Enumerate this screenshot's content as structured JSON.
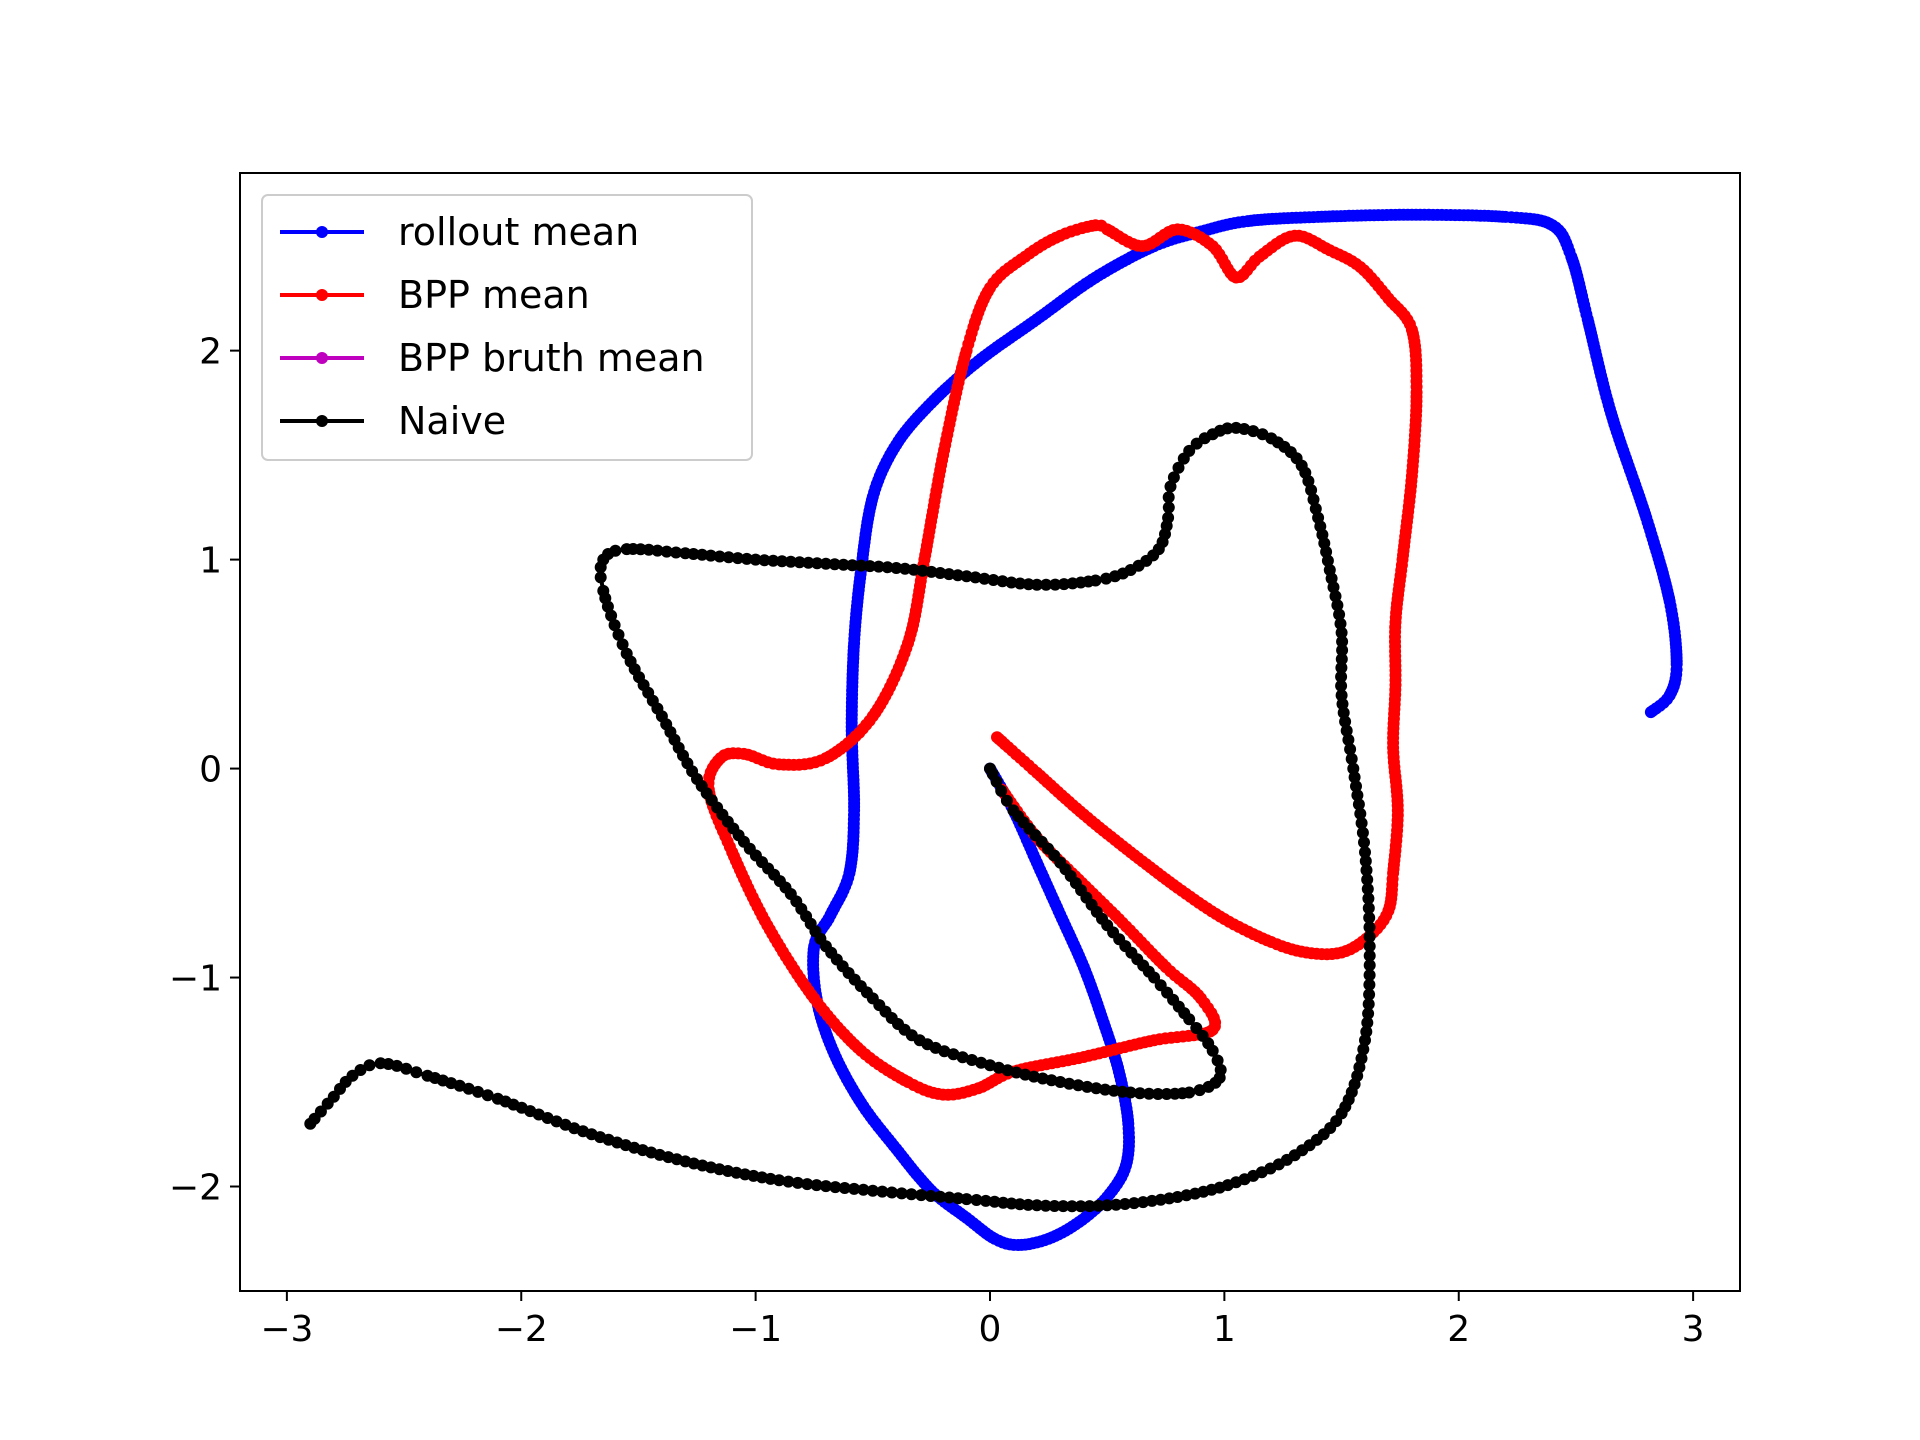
{
  "chart_data": {
    "type": "line",
    "title": "",
    "xlabel": "",
    "ylabel": "",
    "xlim": [
      -3.2,
      3.2
    ],
    "ylim": [
      -2.5,
      2.85
    ],
    "xticks": [
      -3,
      -2,
      -1,
      0,
      1,
      2,
      3
    ],
    "yticks": [
      -2,
      -1,
      0,
      1,
      2
    ],
    "xtick_labels": [
      "−3",
      "−2",
      "−1",
      "0",
      "1",
      "2",
      "3"
    ],
    "ytick_labels": [
      "−2",
      "−1",
      "0",
      "1",
      "2"
    ],
    "grid": false,
    "legend_position": "upper-left",
    "series": [
      {
        "name": "rollout mean",
        "color": "#0000ff",
        "points": [
          [
            0.0,
            0.0
          ],
          [
            0.1,
            -0.2
          ],
          [
            0.2,
            -0.45
          ],
          [
            0.3,
            -0.7
          ],
          [
            0.4,
            -0.95
          ],
          [
            0.48,
            -1.2
          ],
          [
            0.55,
            -1.45
          ],
          [
            0.59,
            -1.7
          ],
          [
            0.58,
            -1.9
          ],
          [
            0.5,
            -2.05
          ],
          [
            0.38,
            -2.17
          ],
          [
            0.25,
            -2.25
          ],
          [
            0.12,
            -2.28
          ],
          [
            0.02,
            -2.25
          ],
          [
            -0.1,
            -2.15
          ],
          [
            -0.25,
            -2.02
          ],
          [
            -0.4,
            -1.82
          ],
          [
            -0.55,
            -1.6
          ],
          [
            -0.67,
            -1.35
          ],
          [
            -0.74,
            -1.1
          ],
          [
            -0.75,
            -0.85
          ],
          [
            -0.68,
            -0.7
          ],
          [
            -0.6,
            -0.5
          ],
          [
            -0.58,
            -0.2
          ],
          [
            -0.59,
            0.2
          ],
          [
            -0.58,
            0.6
          ],
          [
            -0.55,
            0.95
          ],
          [
            -0.5,
            1.3
          ],
          [
            -0.4,
            1.55
          ],
          [
            -0.25,
            1.75
          ],
          [
            -0.05,
            1.95
          ],
          [
            0.2,
            2.15
          ],
          [
            0.45,
            2.35
          ],
          [
            0.7,
            2.5
          ],
          [
            0.9,
            2.57
          ],
          [
            1.1,
            2.62
          ],
          [
            1.4,
            2.64
          ],
          [
            1.8,
            2.65
          ],
          [
            2.2,
            2.64
          ],
          [
            2.4,
            2.6
          ],
          [
            2.48,
            2.45
          ],
          [
            2.55,
            2.15
          ],
          [
            2.65,
            1.7
          ],
          [
            2.8,
            1.2
          ],
          [
            2.9,
            0.8
          ],
          [
            2.93,
            0.5
          ],
          [
            2.9,
            0.35
          ],
          [
            2.82,
            0.27
          ]
        ]
      },
      {
        "name": "BPP mean",
        "color": "#ff0000",
        "points": [
          [
            0.03,
            0.15
          ],
          [
            0.2,
            -0.02
          ],
          [
            0.4,
            -0.22
          ],
          [
            0.6,
            -0.4
          ],
          [
            0.8,
            -0.57
          ],
          [
            1.0,
            -0.72
          ],
          [
            1.2,
            -0.83
          ],
          [
            1.35,
            -0.88
          ],
          [
            1.5,
            -0.88
          ],
          [
            1.62,
            -0.8
          ],
          [
            1.7,
            -0.68
          ],
          [
            1.72,
            -0.5
          ],
          [
            1.74,
            -0.2
          ],
          [
            1.72,
            0.1
          ],
          [
            1.73,
            0.4
          ],
          [
            1.73,
            0.7
          ],
          [
            1.76,
            1.0
          ],
          [
            1.8,
            1.4
          ],
          [
            1.82,
            1.8
          ],
          [
            1.8,
            2.1
          ],
          [
            1.7,
            2.25
          ],
          [
            1.58,
            2.4
          ],
          [
            1.45,
            2.48
          ],
          [
            1.3,
            2.55
          ],
          [
            1.15,
            2.45
          ],
          [
            1.05,
            2.35
          ],
          [
            0.95,
            2.5
          ],
          [
            0.8,
            2.58
          ],
          [
            0.65,
            2.5
          ],
          [
            0.5,
            2.58
          ],
          [
            0.45,
            2.6
          ],
          [
            0.3,
            2.55
          ],
          [
            0.15,
            2.45
          ],
          [
            0.0,
            2.3
          ],
          [
            -0.1,
            2.0
          ],
          [
            -0.2,
            1.5
          ],
          [
            -0.28,
            1.0
          ],
          [
            -0.35,
            0.6
          ],
          [
            -0.5,
            0.25
          ],
          [
            -0.7,
            0.05
          ],
          [
            -0.9,
            0.02
          ],
          [
            -1.05,
            0.07
          ],
          [
            -1.15,
            0.05
          ],
          [
            -1.2,
            -0.1
          ],
          [
            -1.1,
            -0.4
          ],
          [
            -0.95,
            -0.75
          ],
          [
            -0.75,
            -1.1
          ],
          [
            -0.55,
            -1.35
          ],
          [
            -0.35,
            -1.5
          ],
          [
            -0.2,
            -1.56
          ],
          [
            -0.05,
            -1.53
          ],
          [
            0.1,
            -1.45
          ],
          [
            0.4,
            -1.38
          ],
          [
            0.7,
            -1.3
          ],
          [
            0.95,
            -1.25
          ],
          [
            0.9,
            -1.1
          ],
          [
            0.75,
            -0.95
          ],
          [
            0.55,
            -0.72
          ],
          [
            0.35,
            -0.5
          ],
          [
            0.2,
            -0.33
          ],
          [
            0.05,
            -0.1
          ]
        ]
      },
      {
        "name": "BPP bruth mean",
        "color": "#bf00bf",
        "points": []
      },
      {
        "name": "Naive",
        "color": "#000000",
        "points": [
          [
            0.0,
            0.0
          ],
          [
            0.1,
            -0.2
          ],
          [
            0.3,
            -0.45
          ],
          [
            0.5,
            -0.75
          ],
          [
            0.7,
            -1.0
          ],
          [
            0.85,
            -1.2
          ],
          [
            0.95,
            -1.35
          ],
          [
            0.98,
            -1.48
          ],
          [
            0.85,
            -1.55
          ],
          [
            0.6,
            -1.55
          ],
          [
            0.3,
            -1.5
          ],
          [
            0.0,
            -1.42
          ],
          [
            -0.3,
            -1.3
          ],
          [
            -0.5,
            -1.1
          ],
          [
            -0.7,
            -0.85
          ],
          [
            -0.85,
            -0.6
          ],
          [
            -1.05,
            -0.35
          ],
          [
            -1.25,
            -0.05
          ],
          [
            -1.4,
            0.25
          ],
          [
            -1.55,
            0.55
          ],
          [
            -1.65,
            0.85
          ],
          [
            -1.65,
            1.0
          ],
          [
            -1.55,
            1.05
          ],
          [
            -1.3,
            1.03
          ],
          [
            -1.0,
            1.0
          ],
          [
            -0.7,
            0.98
          ],
          [
            -0.4,
            0.96
          ],
          [
            -0.1,
            0.92
          ],
          [
            0.2,
            0.88
          ],
          [
            0.45,
            0.9
          ],
          [
            0.6,
            0.95
          ],
          [
            0.72,
            1.05
          ],
          [
            0.76,
            1.2
          ],
          [
            0.77,
            1.35
          ],
          [
            0.85,
            1.52
          ],
          [
            0.95,
            1.6
          ],
          [
            1.05,
            1.63
          ],
          [
            1.2,
            1.58
          ],
          [
            1.33,
            1.45
          ],
          [
            1.4,
            1.2
          ],
          [
            1.45,
            0.95
          ],
          [
            1.5,
            0.65
          ],
          [
            1.5,
            0.35
          ],
          [
            1.55,
            0.0
          ],
          [
            1.6,
            -0.4
          ],
          [
            1.62,
            -0.85
          ],
          [
            1.6,
            -1.3
          ],
          [
            1.5,
            -1.65
          ],
          [
            1.3,
            -1.85
          ],
          [
            1.05,
            -1.98
          ],
          [
            0.8,
            -2.05
          ],
          [
            0.5,
            -2.09
          ],
          [
            0.2,
            -2.09
          ],
          [
            -0.1,
            -2.06
          ],
          [
            -0.5,
            -2.02
          ],
          [
            -0.9,
            -1.97
          ],
          [
            -1.3,
            -1.88
          ],
          [
            -1.7,
            -1.75
          ],
          [
            -2.1,
            -1.58
          ],
          [
            -2.4,
            -1.47
          ],
          [
            -2.6,
            -1.41
          ],
          [
            -2.72,
            -1.47
          ],
          [
            -2.8,
            -1.57
          ],
          [
            -2.9,
            -1.7
          ]
        ]
      }
    ]
  }
}
